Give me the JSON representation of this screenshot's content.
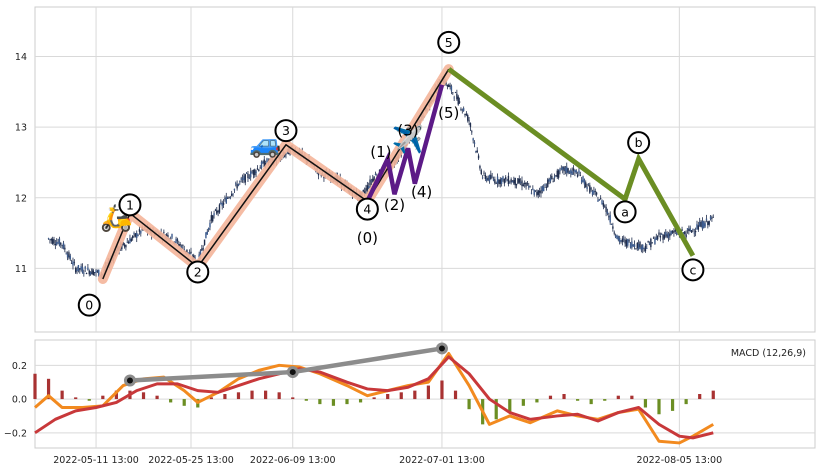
{
  "chart_data": [
    {
      "type": "candlestick",
      "panel": "price",
      "x_range": [
        "2022-05-02",
        "2022-08-25"
      ],
      "ylim": [
        10.1,
        14.7
      ],
      "yticks": [
        11,
        12,
        13,
        14
      ],
      "ytick_labels": [
        "11",
        "12",
        "13",
        "14"
      ],
      "grid": true,
      "price_path": [
        [
          "2022-05-04",
          11.42
        ],
        [
          "2022-05-06",
          11.35
        ],
        [
          "2022-05-08",
          11.0
        ],
        [
          "2022-05-10",
          10.97
        ],
        [
          "2022-05-12",
          10.92
        ],
        [
          "2022-05-14",
          11.25
        ],
        [
          "2022-05-16",
          11.4
        ],
        [
          "2022-05-18",
          11.55
        ],
        [
          "2022-05-20",
          11.5
        ],
        [
          "2022-05-22",
          11.45
        ],
        [
          "2022-05-24",
          11.28
        ],
        [
          "2022-05-26",
          11.08
        ],
        [
          "2022-05-28",
          11.7
        ],
        [
          "2022-05-30",
          11.95
        ],
        [
          "2022-06-01",
          12.2
        ],
        [
          "2022-06-03",
          12.35
        ],
        [
          "2022-06-05",
          12.5
        ],
        [
          "2022-06-07",
          12.55
        ],
        [
          "2022-06-09",
          12.7
        ],
        [
          "2022-06-11",
          12.55
        ],
        [
          "2022-06-13",
          12.35
        ],
        [
          "2022-06-15",
          12.3
        ],
        [
          "2022-06-17",
          12.15
        ],
        [
          "2022-06-19",
          12.0
        ],
        [
          "2022-06-21",
          12.3
        ],
        [
          "2022-06-23",
          12.4
        ],
        [
          "2022-06-25",
          12.65
        ],
        [
          "2022-06-27",
          12.95
        ],
        [
          "2022-06-29",
          13.3
        ],
        [
          "2022-07-01",
          13.7
        ],
        [
          "2022-07-03",
          13.45
        ],
        [
          "2022-07-05",
          13.1
        ],
        [
          "2022-07-07",
          12.3
        ],
        [
          "2022-07-09",
          12.25
        ],
        [
          "2022-07-11",
          12.25
        ],
        [
          "2022-07-13",
          12.2
        ],
        [
          "2022-07-15",
          12.05
        ],
        [
          "2022-07-17",
          12.25
        ],
        [
          "2022-07-19",
          12.4
        ],
        [
          "2022-07-21",
          12.35
        ],
        [
          "2022-07-23",
          12.1
        ],
        [
          "2022-07-25",
          11.9
        ],
        [
          "2022-07-27",
          11.4
        ],
        [
          "2022-07-29",
          11.35
        ],
        [
          "2022-07-31",
          11.3
        ],
        [
          "2022-08-02",
          11.45
        ],
        [
          "2022-08-04",
          11.5
        ],
        [
          "2022-08-06",
          11.5
        ],
        [
          "2022-08-08",
          11.6
        ],
        [
          "2022-08-10",
          11.7
        ]
      ],
      "waves": [
        {
          "name": "primary impulse",
          "color": "#f4b59a",
          "line_color": "#111111",
          "points": [
            [
              "2022-05-12",
              10.85
            ],
            [
              "2022-05-16",
              11.78
            ],
            [
              "2022-05-26",
              11.02
            ],
            [
              "2022-06-08",
              12.75
            ],
            [
              "2022-06-20",
              11.95
            ],
            [
              "2022-07-02",
              13.82
            ]
          ]
        },
        {
          "name": "sub-wave",
          "color": "#5c1a87",
          "points": [
            [
              "2022-06-20",
              11.95
            ],
            [
              "2022-06-23",
              12.55
            ],
            [
              "2022-06-24",
              12.05
            ],
            [
              "2022-06-26",
              12.7
            ],
            [
              "2022-06-27",
              12.2
            ],
            [
              "2022-07-01",
              13.6
            ]
          ]
        },
        {
          "name": "correction",
          "color": "#6b8e23",
          "points": [
            [
              "2022-07-02",
              13.82
            ],
            [
              "2022-07-28",
              11.98
            ],
            [
              "2022-07-30",
              12.55
            ],
            [
              "2022-08-07",
              11.18
            ]
          ]
        }
      ],
      "labels": [
        {
          "text": "0",
          "x": "2022-05-10",
          "y": 10.48,
          "circled": true
        },
        {
          "text": "1",
          "x": "2022-05-16",
          "y": 11.9,
          "circled": true
        },
        {
          "text": "2",
          "x": "2022-05-26",
          "y": 10.95,
          "circled": true
        },
        {
          "text": "3",
          "x": "2022-06-08",
          "y": 12.95,
          "circled": true
        },
        {
          "text": "4",
          "x": "2022-06-20",
          "y": 11.84,
          "circled": true
        },
        {
          "text": "5",
          "x": "2022-07-02",
          "y": 14.2,
          "circled": true
        },
        {
          "text": "a",
          "x": "2022-07-28",
          "y": 11.8,
          "circled": true
        },
        {
          "text": "b",
          "x": "2022-07-30",
          "y": 12.78,
          "circled": true
        },
        {
          "text": "c",
          "x": "2022-08-07",
          "y": 10.98,
          "circled": true
        },
        {
          "text": "(0)",
          "x": "2022-06-20",
          "y": 11.43,
          "circled": false
        },
        {
          "text": "(1)",
          "x": "2022-06-22",
          "y": 12.65,
          "circled": false
        },
        {
          "text": "(2)",
          "x": "2022-06-24",
          "y": 11.9,
          "circled": false
        },
        {
          "text": "(3)",
          "x": "2022-06-26",
          "y": 12.95,
          "circled": false
        },
        {
          "text": "(4)",
          "x": "2022-06-28",
          "y": 12.08,
          "circled": false
        },
        {
          "text": "(5)",
          "x": "2022-07-02",
          "y": 13.2,
          "circled": false
        }
      ],
      "emoji": [
        {
          "symbol": "🛵",
          "x": "2022-05-14",
          "y": 11.7
        },
        {
          "symbol": "🚙",
          "x": "2022-06-05",
          "y": 12.75
        },
        {
          "symbol": "✈️",
          "x": "2022-06-26",
          "y": 12.8
        }
      ]
    },
    {
      "type": "macd",
      "panel": "indicator",
      "legend": "MACD (12,26,9)",
      "ylim": [
        -0.29,
        0.35
      ],
      "yticks": [
        -0.2,
        0.0,
        0.2
      ],
      "ytick_labels": [
        "−0.2",
        "0.0",
        "0.2"
      ],
      "x_range": [
        "2022-05-02",
        "2022-08-25"
      ],
      "xticks": [
        "2022-05-11",
        "2022-05-25",
        "2022-06-09",
        "2022-07-01",
        "2022-08-05"
      ],
      "xtick_labels": [
        "2022-05-11 13:00",
        "2022-05-25 13:00",
        "2022-06-09 13:00",
        "2022-07-01 13:00",
        "2022-08-05 13:00"
      ],
      "grid": true,
      "macd_color": "#f28a1f",
      "signal_color": "#c8383a",
      "hist_pos_color": "#a83232",
      "hist_neg_color": "#6b8e23",
      "macd": [
        [
          "2022-05-02",
          -0.05
        ],
        [
          "2022-05-04",
          0.02
        ],
        [
          "2022-05-06",
          -0.05
        ],
        [
          "2022-05-09",
          -0.05
        ],
        [
          "2022-05-12",
          -0.04
        ],
        [
          "2022-05-15",
          0.08
        ],
        [
          "2022-05-18",
          0.12
        ],
        [
          "2022-05-21",
          0.13
        ],
        [
          "2022-05-24",
          0.05
        ],
        [
          "2022-05-26",
          -0.02
        ],
        [
          "2022-05-29",
          0.04
        ],
        [
          "2022-06-01",
          0.12
        ],
        [
          "2022-06-04",
          0.17
        ],
        [
          "2022-06-07",
          0.2
        ],
        [
          "2022-06-10",
          0.19
        ],
        [
          "2022-06-13",
          0.15
        ],
        [
          "2022-06-17",
          0.08
        ],
        [
          "2022-06-20",
          0.02
        ],
        [
          "2022-06-23",
          0.05
        ],
        [
          "2022-06-26",
          0.08
        ],
        [
          "2022-06-29",
          0.1
        ],
        [
          "2022-07-02",
          0.27
        ],
        [
          "2022-07-05",
          0.08
        ],
        [
          "2022-07-08",
          -0.15
        ],
        [
          "2022-07-11",
          -0.1
        ],
        [
          "2022-07-14",
          -0.14
        ],
        [
          "2022-07-18",
          -0.07
        ],
        [
          "2022-07-21",
          -0.1
        ],
        [
          "2022-07-24",
          -0.12
        ],
        [
          "2022-07-27",
          -0.08
        ],
        [
          "2022-07-30",
          -0.06
        ],
        [
          "2022-08-02",
          -0.25
        ],
        [
          "2022-08-05",
          -0.26
        ],
        [
          "2022-08-07",
          -0.22
        ],
        [
          "2022-08-10",
          -0.15
        ]
      ],
      "signal": [
        [
          "2022-05-02",
          -0.2
        ],
        [
          "2022-05-05",
          -0.12
        ],
        [
          "2022-05-08",
          -0.07
        ],
        [
          "2022-05-11",
          -0.05
        ],
        [
          "2022-05-14",
          -0.02
        ],
        [
          "2022-05-17",
          0.05
        ],
        [
          "2022-05-20",
          0.09
        ],
        [
          "2022-05-23",
          0.09
        ],
        [
          "2022-05-26",
          0.05
        ],
        [
          "2022-05-29",
          0.04
        ],
        [
          "2022-06-01",
          0.08
        ],
        [
          "2022-06-04",
          0.12
        ],
        [
          "2022-06-07",
          0.15
        ],
        [
          "2022-06-10",
          0.18
        ],
        [
          "2022-06-13",
          0.16
        ],
        [
          "2022-06-17",
          0.1
        ],
        [
          "2022-06-20",
          0.06
        ],
        [
          "2022-06-23",
          0.05
        ],
        [
          "2022-06-26",
          0.07
        ],
        [
          "2022-06-29",
          0.12
        ],
        [
          "2022-07-02",
          0.25
        ],
        [
          "2022-07-05",
          0.15
        ],
        [
          "2022-07-08",
          0.0
        ],
        [
          "2022-07-11",
          -0.08
        ],
        [
          "2022-07-14",
          -0.12
        ],
        [
          "2022-07-18",
          -0.1
        ],
        [
          "2022-07-21",
          -0.09
        ],
        [
          "2022-07-24",
          -0.13
        ],
        [
          "2022-07-27",
          -0.08
        ],
        [
          "2022-07-30",
          -0.05
        ],
        [
          "2022-08-02",
          -0.15
        ],
        [
          "2022-08-05",
          -0.22
        ],
        [
          "2022-08-07",
          -0.23
        ],
        [
          "2022-08-10",
          -0.2
        ]
      ],
      "histogram": [
        [
          "2022-05-02",
          0.15
        ],
        [
          "2022-05-04",
          0.12
        ],
        [
          "2022-05-06",
          0.05
        ],
        [
          "2022-05-08",
          0.01
        ],
        [
          "2022-05-10",
          -0.01
        ],
        [
          "2022-05-12",
          0.02
        ],
        [
          "2022-05-14",
          0.05
        ],
        [
          "2022-05-16",
          0.05
        ],
        [
          "2022-05-18",
          0.04
        ],
        [
          "2022-05-20",
          0.02
        ],
        [
          "2022-05-22",
          -0.02
        ],
        [
          "2022-05-24",
          -0.04
        ],
        [
          "2022-05-26",
          -0.05
        ],
        [
          "2022-05-28",
          0.01
        ],
        [
          "2022-05-30",
          0.03
        ],
        [
          "2022-06-01",
          0.04
        ],
        [
          "2022-06-03",
          0.05
        ],
        [
          "2022-06-05",
          0.05
        ],
        [
          "2022-06-07",
          0.04
        ],
        [
          "2022-06-09",
          0.01
        ],
        [
          "2022-06-11",
          -0.01
        ],
        [
          "2022-06-13",
          -0.03
        ],
        [
          "2022-06-15",
          -0.04
        ],
        [
          "2022-06-17",
          -0.03
        ],
        [
          "2022-06-19",
          -0.02
        ],
        [
          "2022-06-21",
          0.01
        ],
        [
          "2022-06-23",
          0.03
        ],
        [
          "2022-06-25",
          0.04
        ],
        [
          "2022-06-27",
          0.05
        ],
        [
          "2022-06-29",
          0.08
        ],
        [
          "2022-07-01",
          0.11
        ],
        [
          "2022-07-03",
          0.05
        ],
        [
          "2022-07-05",
          -0.06
        ],
        [
          "2022-07-07",
          -0.15
        ],
        [
          "2022-07-09",
          -0.12
        ],
        [
          "2022-07-11",
          -0.08
        ],
        [
          "2022-07-13",
          -0.04
        ],
        [
          "2022-07-15",
          -0.02
        ],
        [
          "2022-07-17",
          0.02
        ],
        [
          "2022-07-19",
          0.03
        ],
        [
          "2022-07-21",
          -0.01
        ],
        [
          "2022-07-23",
          -0.03
        ],
        [
          "2022-07-25",
          -0.01
        ],
        [
          "2022-07-27",
          0.02
        ],
        [
          "2022-07-29",
          0.02
        ],
        [
          "2022-07-31",
          -0.05
        ],
        [
          "2022-08-02",
          -0.09
        ],
        [
          "2022-08-04",
          -0.07
        ],
        [
          "2022-08-06",
          -0.03
        ],
        [
          "2022-08-08",
          0.03
        ],
        [
          "2022-08-10",
          0.05
        ]
      ],
      "divergence_points": [
        [
          "2022-05-16",
          0.11
        ],
        [
          "2022-06-09",
          0.16
        ],
        [
          "2022-07-01",
          0.3
        ]
      ],
      "divergence_color": "#8c8c8c"
    }
  ]
}
